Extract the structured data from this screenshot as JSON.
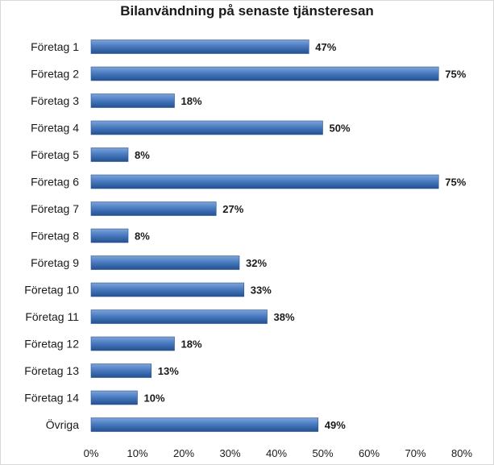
{
  "chart_data": {
    "type": "bar",
    "orientation": "horizontal",
    "title": "Bilanvändning på senaste tjänsteresan",
    "categories": [
      "Företag 1",
      "Företag 2",
      "Företag 3",
      "Företag 4",
      "Företag 5",
      "Företag 6",
      "Företag 7",
      "Företag 8",
      "Företag 9",
      "Företag 10",
      "Företag 11",
      "Företag 12",
      "Företag 13",
      "Företag 14",
      "Övriga"
    ],
    "values": [
      47,
      75,
      18,
      50,
      8,
      75,
      27,
      8,
      32,
      33,
      38,
      18,
      13,
      10,
      49
    ],
    "value_labels": [
      "47%",
      "75%",
      "18%",
      "50%",
      "8%",
      "75%",
      "27%",
      "8%",
      "32%",
      "33%",
      "38%",
      "18%",
      "13%",
      "10%",
      "49%"
    ],
    "xlim": [
      0,
      80
    ],
    "x_ticks": [
      "0%",
      "10%",
      "20%",
      "30%",
      "40%",
      "50%",
      "60%",
      "70%",
      "80%"
    ],
    "grid": false,
    "bar_color": "#3f73bd"
  }
}
